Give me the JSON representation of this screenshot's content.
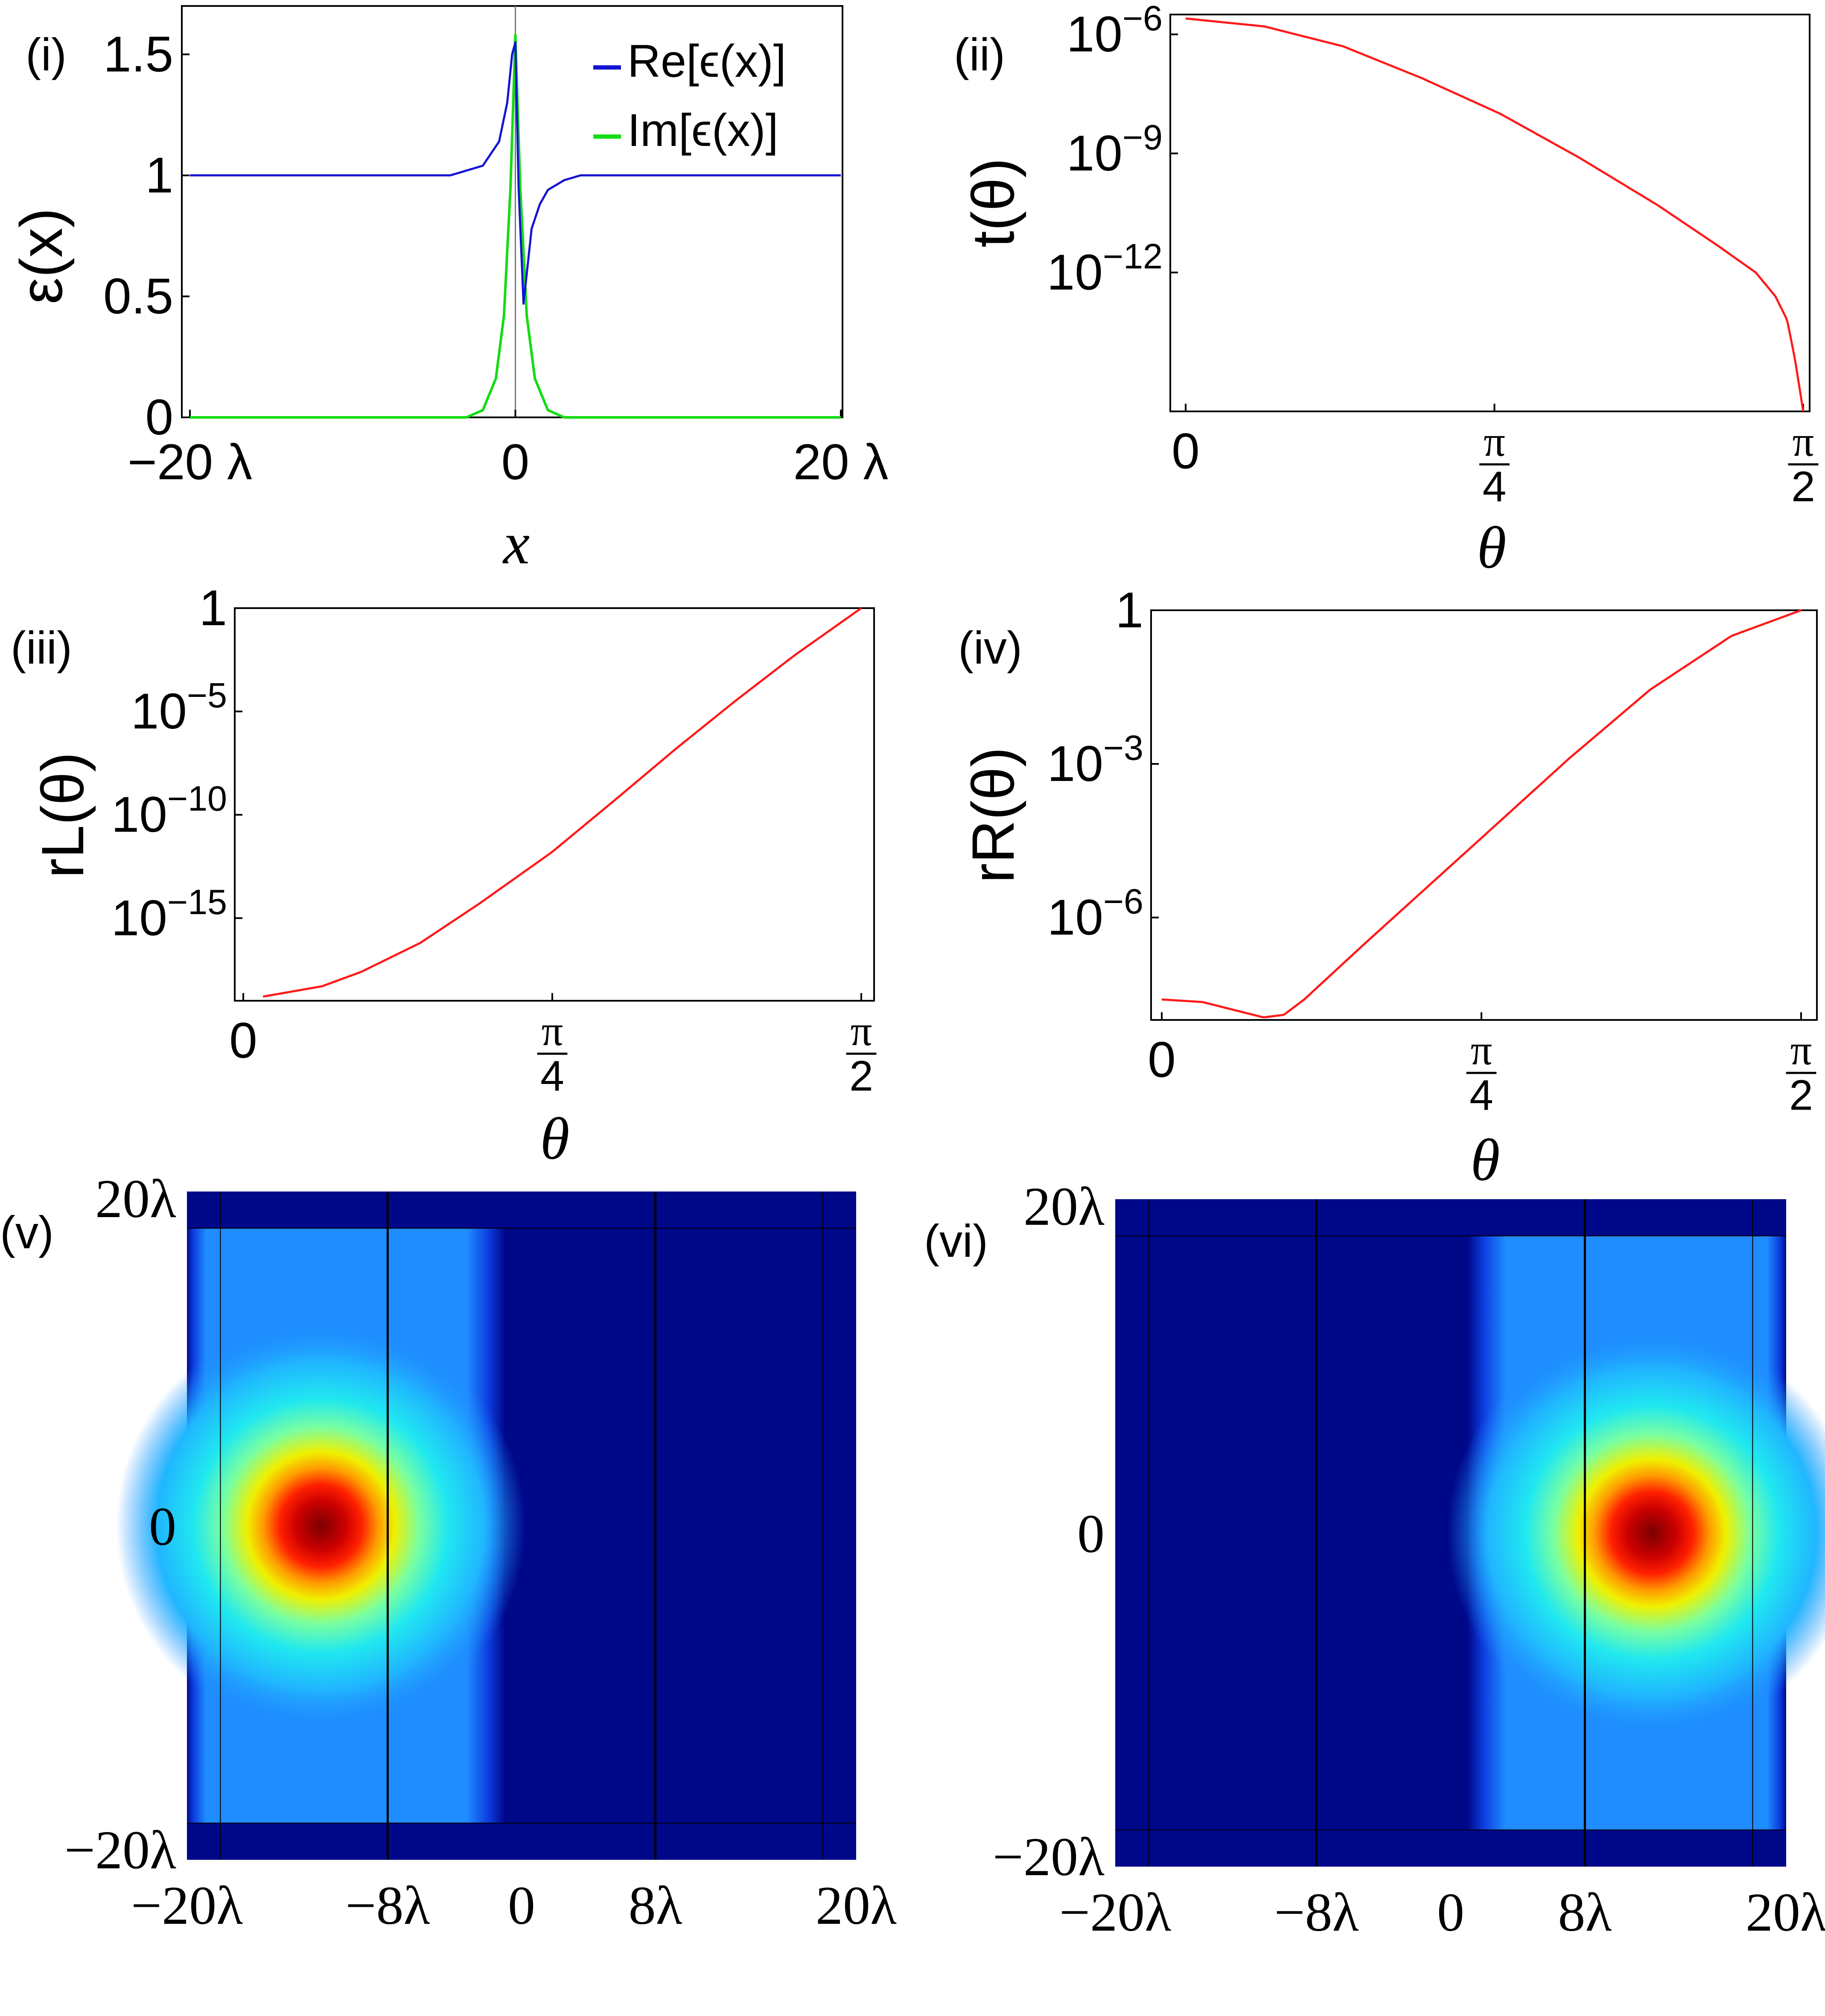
{
  "panels": {
    "p1": {
      "label": "(i)"
    },
    "p2": {
      "label": "(ii)"
    },
    "p3": {
      "label": "(iii)"
    },
    "p4": {
      "label": "(iv)"
    },
    "p5": {
      "label": "(v)"
    },
    "p6": {
      "label": "(vi)"
    }
  },
  "colors": {
    "re": "#1414d2",
    "im": "#14dc14",
    "curve": "#ff1a1a",
    "axis": "#000000"
  },
  "chart_data": [
    {
      "type": "line",
      "ylabel": "ε(x)",
      "xlabel": "x",
      "xlim": [
        -20,
        20
      ],
      "ylim": [
        0,
        1.7
      ],
      "xticks": [
        "−20 λ",
        "0",
        "20 λ"
      ],
      "yticks": [
        "0",
        "0.5",
        "1",
        "1.5"
      ],
      "series": [
        {
          "name": "Re[ϵ(x)]",
          "x": [
            -20,
            -4,
            -2,
            -1,
            -0.5,
            -0.2,
            0,
            0.2,
            0.5,
            1,
            1.5,
            2,
            3,
            4,
            20
          ],
          "values": [
            1,
            1,
            1.04,
            1.14,
            1.3,
            1.5,
            1.55,
            0.95,
            0.47,
            0.78,
            0.88,
            0.94,
            0.98,
            1,
            1
          ]
        },
        {
          "name": "Im[ϵ(x)]",
          "x": [
            -20,
            -3,
            -2,
            -1.2,
            -0.7,
            -0.3,
            0,
            0.3,
            0.7,
            1.2,
            2,
            3,
            20
          ],
          "values": [
            0,
            0,
            0.03,
            0.16,
            0.42,
            0.95,
            1.58,
            0.95,
            0.42,
            0.16,
            0.03,
            0,
            0
          ]
        }
      ]
    },
    {
      "type": "line",
      "ylabel": "t(θ)",
      "xlabel": "θ",
      "xlim": [
        0,
        1.5708
      ],
      "ylim_log10": [
        -15.5,
        -5.5
      ],
      "xticks": [
        "0",
        "π/4",
        "π/2"
      ],
      "yticks": [
        "10−6",
        "10−9",
        "10−12"
      ],
      "series": [
        {
          "x": [
            0,
            0.2,
            0.4,
            0.6,
            0.8,
            1.0,
            1.2,
            1.35,
            1.45,
            1.5,
            1.53,
            1.55,
            1.5708
          ],
          "values_log10": [
            -5.6,
            -5.8,
            -6.3,
            -7.1,
            -8.0,
            -9.1,
            -10.3,
            -11.3,
            -12.0,
            -12.6,
            -13.2,
            -14.2,
            -15.5
          ]
        }
      ]
    },
    {
      "type": "line",
      "ylabel": "rL(θ)",
      "xlabel": "θ",
      "xlim": [
        0,
        1.5708
      ],
      "ylim_log10": [
        -19,
        0
      ],
      "xticks": [
        "0",
        "π/4",
        "π/2"
      ],
      "yticks": [
        "1",
        "10−5",
        "10−10",
        "10−15"
      ],
      "series": [
        {
          "x": [
            0.05,
            0.2,
            0.3,
            0.45,
            0.6,
            0.785,
            0.95,
            1.1,
            1.25,
            1.4,
            1.5708
          ],
          "values_log10": [
            -18.8,
            -18.3,
            -17.6,
            -16.2,
            -14.3,
            -11.8,
            -9.2,
            -6.8,
            -4.5,
            -2.3,
            0
          ]
        }
      ]
    },
    {
      "type": "line",
      "ylabel": "rR(θ)",
      "xlabel": "θ",
      "xlim": [
        0,
        1.5708
      ],
      "ylim_log10": [
        -8,
        0
      ],
      "xticks": [
        "0",
        "π/4",
        "π/2"
      ],
      "yticks": [
        "1",
        "10−3",
        "10−6"
      ],
      "series": [
        {
          "x": [
            0,
            0.1,
            0.2,
            0.25,
            0.3,
            0.35,
            0.5,
            0.785,
            1.0,
            1.2,
            1.4,
            1.5708
          ],
          "values_log10": [
            -7.6,
            -7.65,
            -7.85,
            -7.95,
            -7.9,
            -7.6,
            -6.5,
            -4.45,
            -2.9,
            -1.55,
            -0.5,
            0
          ]
        }
      ]
    },
    {
      "type": "heatmap",
      "xlim": [
        -20,
        20
      ],
      "ylim": [
        -20,
        20
      ],
      "xticks": [
        "−20λ",
        "−8λ",
        "0",
        "8λ",
        "20λ"
      ],
      "yticks": [
        "20λ",
        "0",
        "−20λ"
      ],
      "peak": [
        -12,
        0
      ],
      "bright_region_x": [
        -20,
        -1
      ]
    },
    {
      "type": "heatmap",
      "xlim": [
        -20,
        20
      ],
      "ylim": [
        -20,
        20
      ],
      "xticks": [
        "−20λ",
        "−8λ",
        "0",
        "8λ",
        "20λ"
      ],
      "yticks": [
        "20λ",
        "0",
        "−20λ"
      ],
      "peak": [
        12,
        0
      ],
      "bright_region_x": [
        1,
        20
      ]
    }
  ]
}
